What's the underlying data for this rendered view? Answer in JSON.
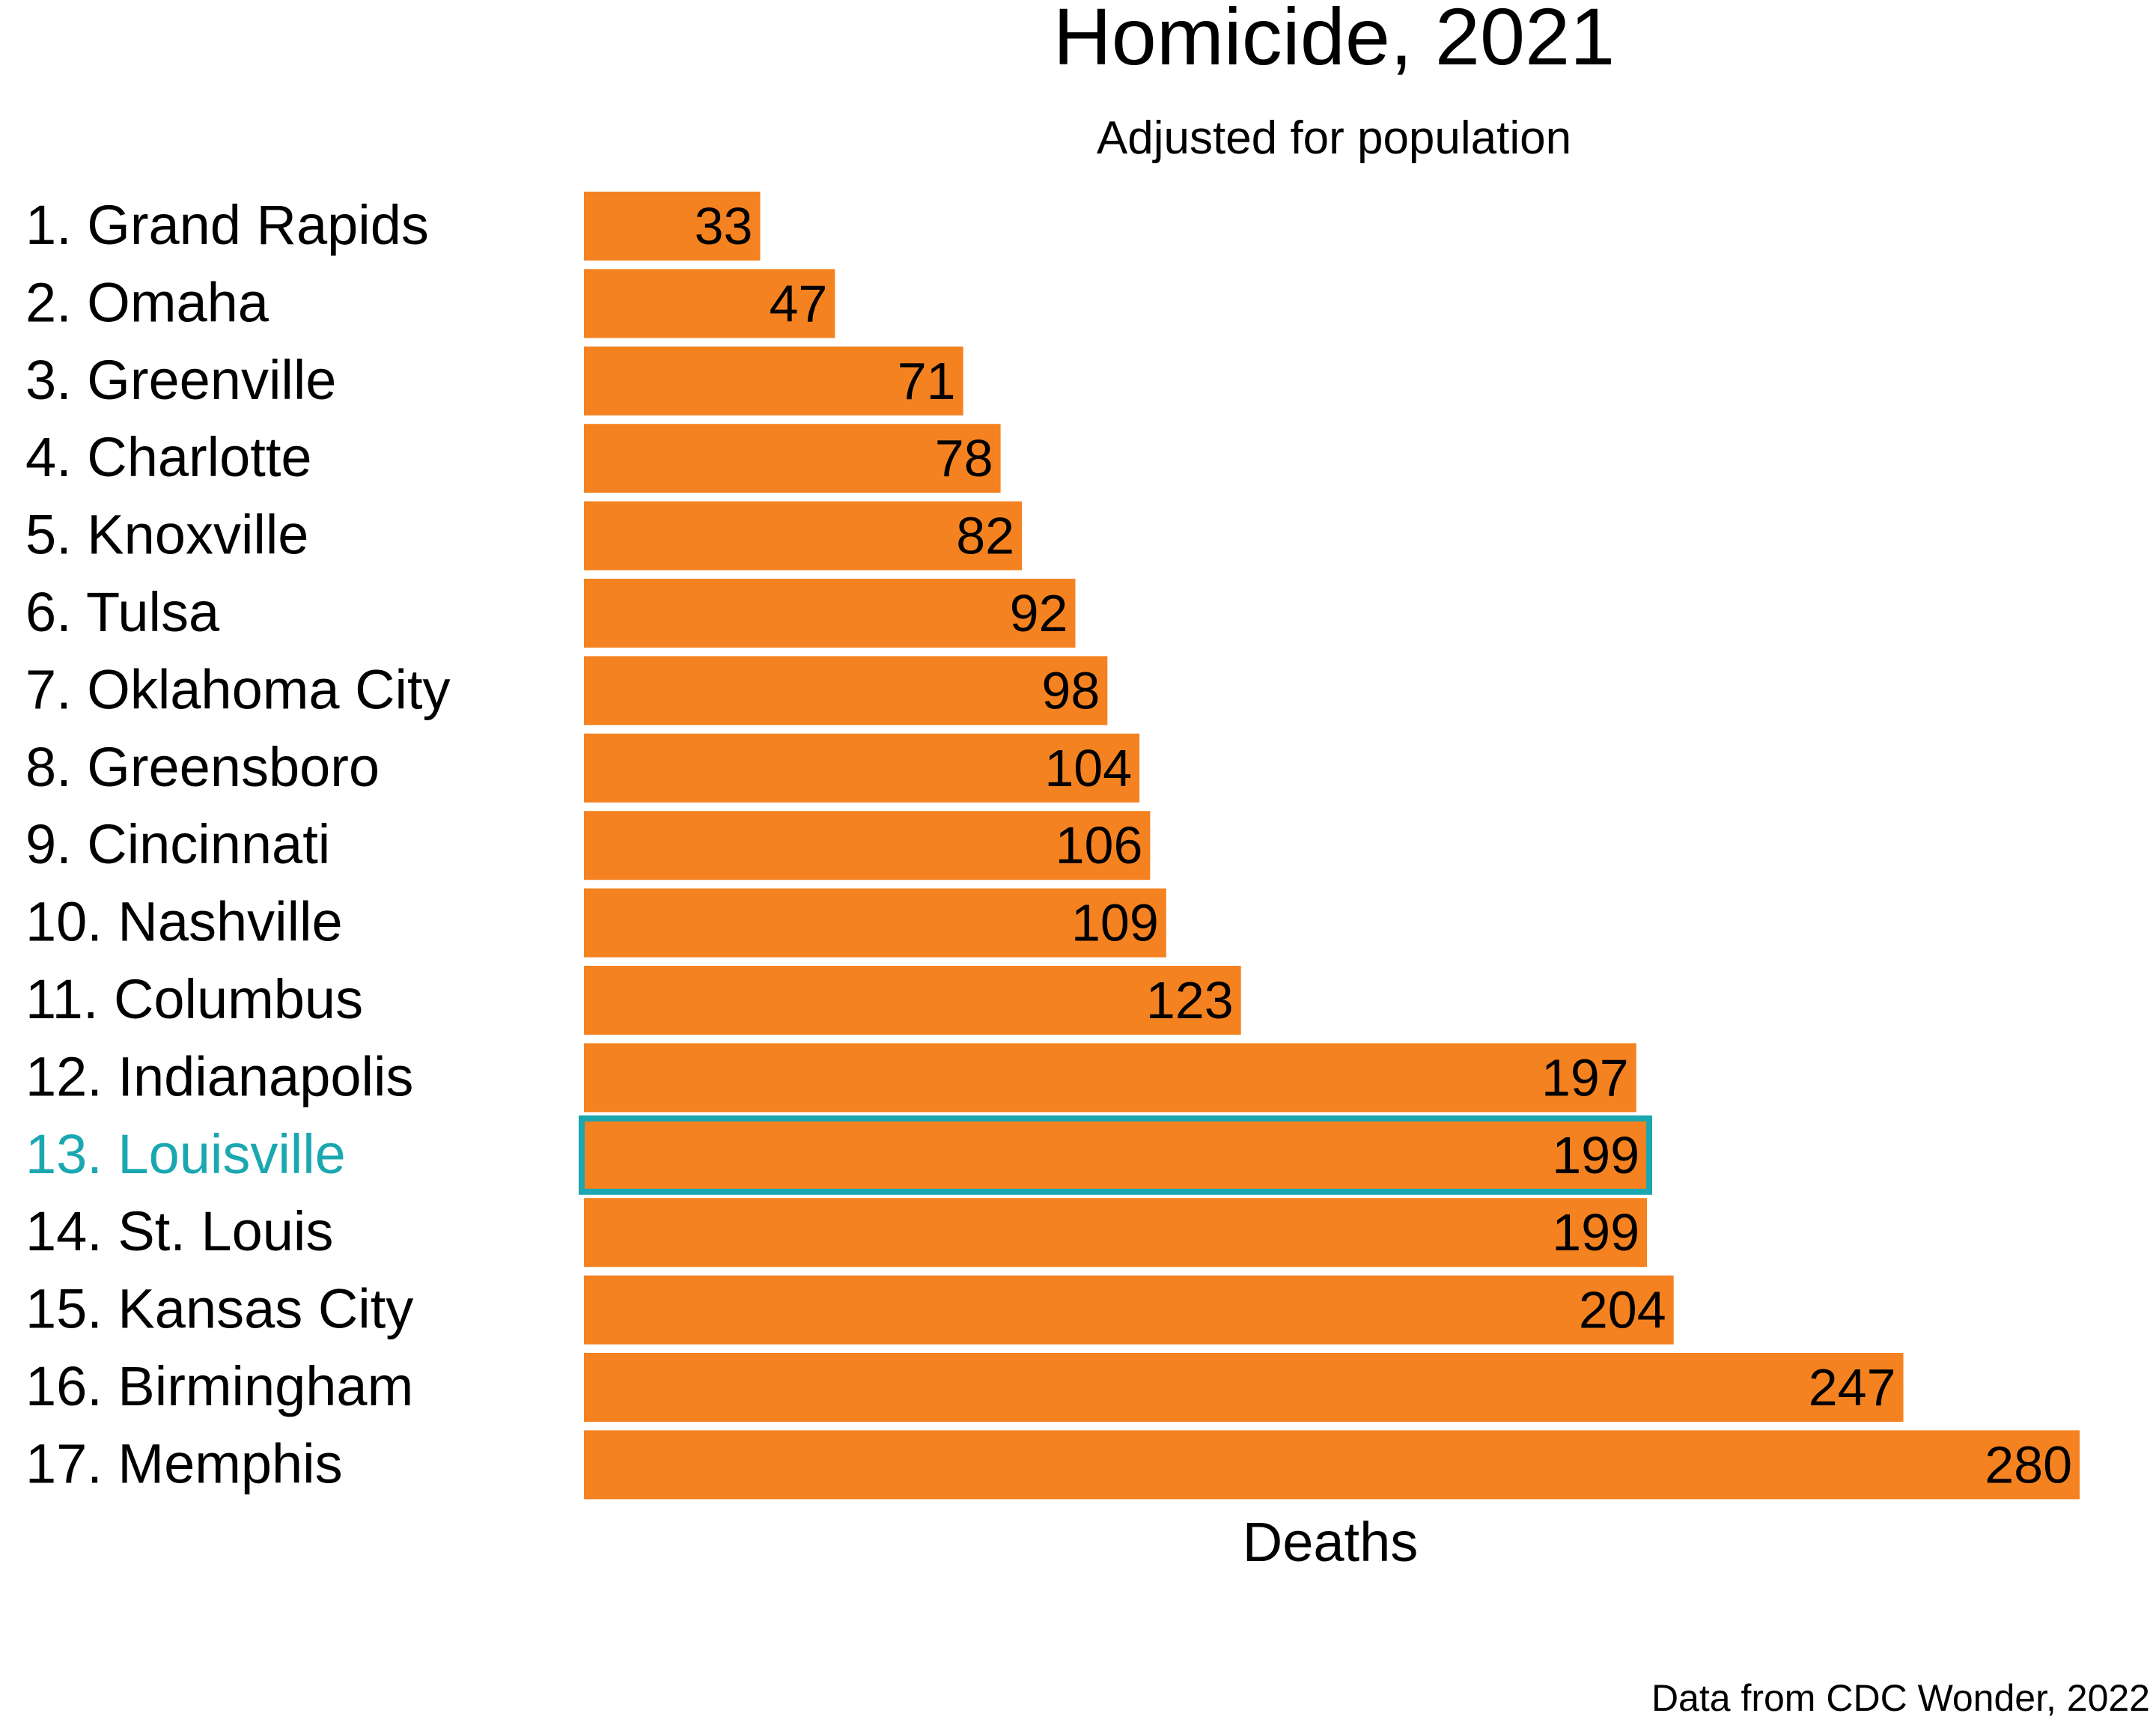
{
  "chart_data": {
    "type": "bar",
    "orientation": "horizontal",
    "title": "Homicide, 2021",
    "subtitle": "Adjusted for population",
    "xlabel": "Deaths",
    "ylabel": "",
    "source": "Data from CDC Wonder, 2022",
    "categories": [
      "1. Grand Rapids",
      "2. Omaha",
      "3. Greenville",
      "4. Charlotte",
      "5. Knoxville",
      "6. Tulsa",
      "7. Oklahoma City",
      "8. Greensboro",
      "9. Cincinnati",
      "10. Nashville",
      "11. Columbus",
      "12. Indianapolis",
      "13. Louisville",
      "14. St. Louis",
      "15. Kansas City",
      "16. Birmingham",
      "17. Memphis"
    ],
    "values": [
      33,
      47,
      71,
      78,
      82,
      92,
      98,
      104,
      106,
      109,
      123,
      197,
      199,
      199,
      204,
      247,
      280
    ],
    "value_labels": [
      "33",
      "47",
      "71",
      "78",
      "82",
      "92",
      "98",
      "104",
      "106",
      "109",
      "123",
      "197",
      "199",
      "199",
      "204",
      "247",
      "280"
    ],
    "highlight_index": 12,
    "xlim": [
      0,
      280
    ],
    "grid": false,
    "legend": "none",
    "colors": {
      "bar": "#F58220",
      "highlight_outline": "#1AA7B0",
      "highlight_label": "#1AA7B0",
      "text": "#000000"
    }
  }
}
